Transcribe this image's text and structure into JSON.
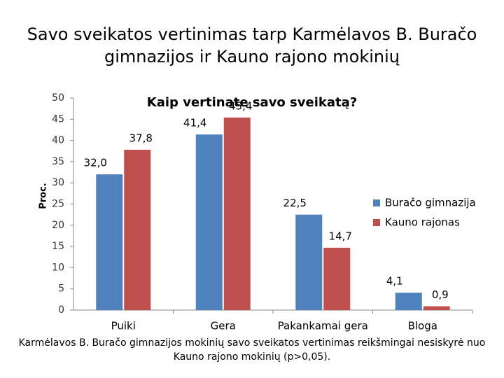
{
  "slide_title": [
    "Savo sveikatos vertinimas tarp Karmėlavos B. Buračo",
    "gimnazijos ir Kauno rajono mokinių"
  ],
  "chart_data": {
    "type": "bar",
    "title": "Kaip vertinate savo sveikatą?",
    "y_label": "Proc.",
    "categories": [
      "Puiki",
      "Gera",
      "Pakankamai gera",
      "Bloga"
    ],
    "series": [
      {
        "name": "Buračo gimnazija",
        "color": "#4f81bd",
        "values": [
          32.0,
          41.4,
          22.5,
          4.1
        ],
        "value_labels": [
          "32,0",
          "41,4",
          "22,5",
          "4,1"
        ]
      },
      {
        "name": "Kauno rajonas",
        "color": "#c0504d",
        "values": [
          37.8,
          45.4,
          14.7,
          0.9
        ],
        "value_labels": [
          "37,8",
          "45,4",
          "14,7",
          "0,9"
        ]
      }
    ],
    "ylim": [
      0,
      50
    ],
    "yticks": [
      0,
      5,
      10,
      15,
      20,
      25,
      30,
      35,
      40,
      45,
      50
    ],
    "grid": false,
    "legend": "right"
  },
  "footnote": [
    "Karmėlavos B. Buračo gimnazijos mokinių savo sveikatos vertinimas reikšmingai nesiskyrė nuo",
    "Kauno rajono mokinių (p>0,05)."
  ]
}
